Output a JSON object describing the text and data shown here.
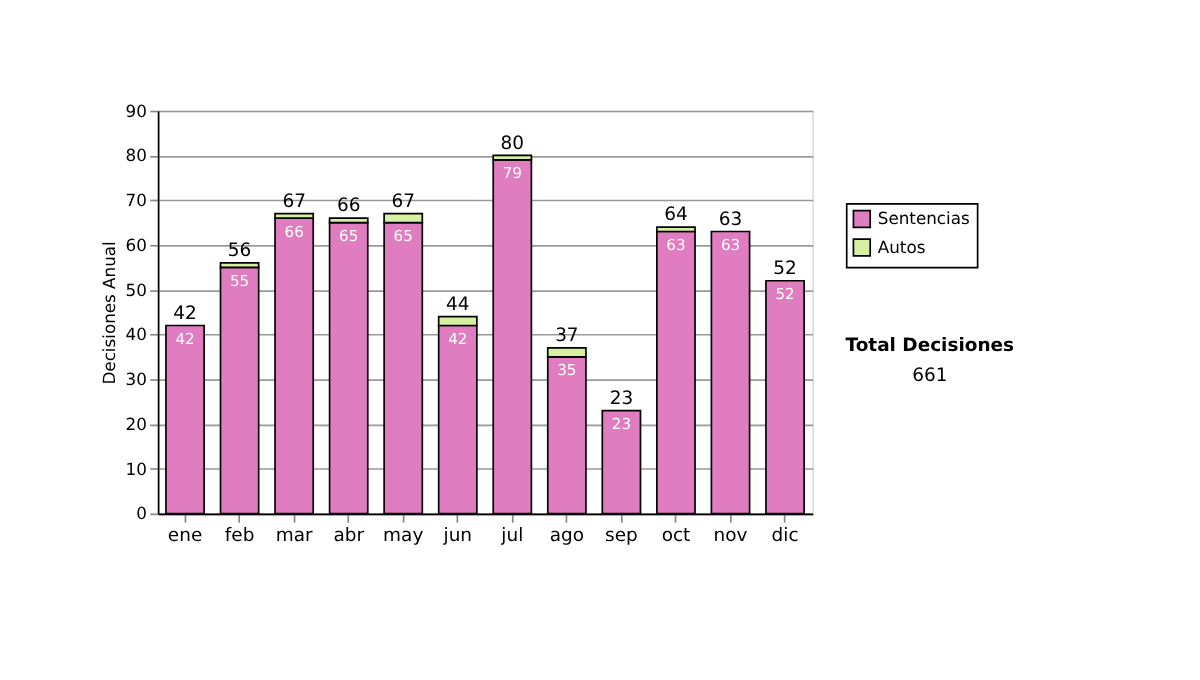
{
  "chart_data": {
    "type": "bar",
    "stacked": true,
    "ylabel": "Decisiones Anual",
    "categories": [
      "ene",
      "feb",
      "mar",
      "abr",
      "may",
      "jun",
      "jul",
      "ago",
      "sep",
      "oct",
      "nov",
      "dic"
    ],
    "series": [
      {
        "name": "Sentencias",
        "color": "#e07cc0",
        "values": [
          42,
          55,
          66,
          65,
          65,
          42,
          79,
          35,
          23,
          63,
          63,
          52
        ],
        "value_labels": [
          "42",
          "55",
          "66",
          "65",
          "65",
          "42",
          "79",
          "35",
          "23",
          "63",
          "63",
          "52"
        ]
      },
      {
        "name": "Autos",
        "color": "#d6f0a0",
        "values": [
          0,
          1,
          1,
          1,
          2,
          2,
          1,
          2,
          0,
          1,
          0,
          0
        ]
      }
    ],
    "totals": [
      "42",
      "56",
      "67",
      "66",
      "67",
      "44",
      "80",
      "37",
      "23",
      "64",
      "63",
      "52"
    ],
    "ylim": [
      0,
      90
    ],
    "yticks": [
      0,
      10,
      20,
      30,
      40,
      50,
      60,
      70,
      80,
      90
    ],
    "grid": "y",
    "legend": "right",
    "annotations": [
      "Total Decisiones",
      "661"
    ]
  }
}
